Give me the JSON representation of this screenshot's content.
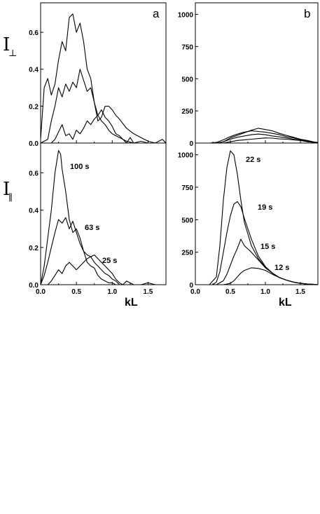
{
  "chart_data": [
    {
      "id": "a-top",
      "type": "line",
      "panel_label": "a",
      "ylabel": "I⊥",
      "xlim": [
        0,
        1.75
      ],
      "ylim": [
        0,
        0.76
      ],
      "yticks": [
        0.0,
        0.2,
        0.4,
        0.6
      ],
      "ytick_labels": [
        "0.0",
        "0.2",
        "0.4",
        "0.6"
      ],
      "show_xticklabels": false,
      "series": [
        {
          "x": [
            0,
            0.05,
            0.1,
            0.15,
            0.2,
            0.25,
            0.3,
            0.35,
            0.4,
            0.45,
            0.5,
            0.55,
            0.6,
            0.65,
            0.7,
            0.75,
            0.8,
            0.85,
            0.9,
            0.95,
            1.0,
            1.05,
            1.1,
            1.15,
            1.2,
            1.3,
            1.4,
            1.5,
            1.6,
            1.7,
            1.75
          ],
          "y": [
            0.02,
            0.3,
            0.35,
            0.26,
            0.32,
            0.45,
            0.55,
            0.5,
            0.68,
            0.7,
            0.6,
            0.65,
            0.55,
            0.4,
            0.35,
            0.22,
            0.15,
            0.12,
            0.1,
            0.07,
            0.05,
            0.04,
            0.03,
            0.02,
            0.01,
            0.0,
            0.0,
            0.0,
            0.0,
            0.0,
            0.0
          ]
        },
        {
          "x": [
            0,
            0.1,
            0.15,
            0.2,
            0.25,
            0.3,
            0.35,
            0.4,
            0.45,
            0.5,
            0.55,
            0.6,
            0.65,
            0.7,
            0.75,
            0.8,
            0.85,
            0.9,
            0.95,
            1.0,
            1.05,
            1.1,
            1.2,
            1.3,
            1.4,
            1.5,
            1.6,
            1.7,
            1.75
          ],
          "y": [
            0.0,
            0.02,
            0.12,
            0.2,
            0.3,
            0.25,
            0.32,
            0.28,
            0.33,
            0.3,
            0.4,
            0.34,
            0.28,
            0.3,
            0.22,
            0.12,
            0.14,
            0.2,
            0.2,
            0.18,
            0.15,
            0.13,
            0.08,
            0.05,
            0.03,
            0.01,
            0.0,
            0.0,
            0.0
          ]
        },
        {
          "x": [
            0,
            0.15,
            0.2,
            0.25,
            0.3,
            0.35,
            0.4,
            0.45,
            0.5,
            0.55,
            0.6,
            0.65,
            0.7,
            0.75,
            0.8,
            0.85,
            0.9,
            0.95,
            1.0,
            1.05,
            1.1,
            1.15,
            1.2,
            1.25,
            1.3,
            1.4,
            1.5,
            1.6,
            1.7,
            1.75
          ],
          "y": [
            0.0,
            0.0,
            0.02,
            0.06,
            0.1,
            0.04,
            0.05,
            0.02,
            0.07,
            0.05,
            0.08,
            0.12,
            0.1,
            0.13,
            0.15,
            0.18,
            0.14,
            0.12,
            0.09,
            0.05,
            0.04,
            0.02,
            0.0,
            0.03,
            0.0,
            0.01,
            0.0,
            0.0,
            0.02,
            0.0
          ]
        }
      ]
    },
    {
      "id": "b-top",
      "type": "line",
      "panel_label": "b",
      "xlim": [
        0,
        1.75
      ],
      "ylim": [
        0,
        1090
      ],
      "yticks": [
        0,
        250,
        500,
        750,
        1000
      ],
      "ytick_labels": [
        "0",
        "250",
        "500",
        "750",
        "1000"
      ],
      "show_xticklabels": false,
      "series": [
        {
          "x": [
            0.2,
            0.3,
            0.4,
            0.5,
            0.6,
            0.7,
            0.8,
            0.9,
            1.0,
            1.1,
            1.2,
            1.3,
            1.4,
            1.5,
            1.6,
            1.7,
            1.75
          ],
          "y": [
            0,
            0,
            10,
            40,
            60,
            80,
            100,
            115,
            105,
            95,
            75,
            60,
            45,
            30,
            20,
            8,
            5
          ]
        },
        {
          "x": [
            0.2,
            0.3,
            0.4,
            0.5,
            0.6,
            0.7,
            0.8,
            0.9,
            1.0,
            1.1,
            1.2,
            1.3,
            1.4,
            1.5,
            1.6,
            1.7,
            1.75
          ],
          "y": [
            0,
            5,
            25,
            50,
            70,
            85,
            95,
            90,
            85,
            75,
            65,
            50,
            40,
            25,
            15,
            5,
            0
          ]
        },
        {
          "x": [
            0.3,
            0.4,
            0.5,
            0.6,
            0.7,
            0.8,
            0.9,
            1.0,
            1.1,
            1.2,
            1.3,
            1.4,
            1.5,
            1.6,
            1.7,
            1.75
          ],
          "y": [
            0,
            10,
            30,
            45,
            55,
            65,
            70,
            65,
            55,
            48,
            40,
            30,
            20,
            12,
            5,
            0
          ]
        },
        {
          "x": [
            0.4,
            0.5,
            0.6,
            0.7,
            0.8,
            0.9,
            1.0,
            1.1,
            1.2,
            1.3,
            1.4,
            1.5,
            1.6,
            1.7,
            1.75
          ],
          "y": [
            0,
            10,
            20,
            25,
            30,
            35,
            40,
            38,
            32,
            30,
            25,
            20,
            10,
            5,
            0
          ]
        }
      ]
    },
    {
      "id": "a-bottom",
      "type": "line",
      "ylabel": "I∥",
      "xlabel": "kL",
      "xlim": [
        0,
        1.75
      ],
      "ylim": [
        0,
        0.76
      ],
      "xticks": [
        0.0,
        0.5,
        1.0,
        1.5
      ],
      "xtick_labels": [
        "0.0",
        "0.5",
        "1.0",
        "1.5"
      ],
      "yticks": [
        0.0,
        0.2,
        0.4,
        0.6
      ],
      "ytick_labels": [
        "0.0",
        "0.2",
        "0.4",
        "0.6"
      ],
      "show_xticklabels": true,
      "series": [
        {
          "name": "100 s",
          "x": [
            0,
            0.05,
            0.1,
            0.15,
            0.2,
            0.25,
            0.28,
            0.3,
            0.35,
            0.4,
            0.45,
            0.5,
            0.55,
            0.6,
            0.65,
            0.7,
            0.75,
            0.8,
            0.85,
            0.9,
            0.95,
            1.0,
            1.05,
            1.1,
            1.2,
            1.3,
            1.4,
            1.5,
            1.6,
            1.75
          ],
          "y": [
            0.0,
            0.1,
            0.25,
            0.4,
            0.6,
            0.72,
            0.7,
            0.62,
            0.5,
            0.35,
            0.28,
            0.3,
            0.25,
            0.18,
            0.12,
            0.1,
            0.09,
            0.05,
            0.03,
            0.02,
            0.01,
            0.01,
            0.0,
            0.0,
            0.0,
            0.0,
            0.0,
            0.0,
            0.0,
            0.0
          ]
        },
        {
          "name": "63 s",
          "x": [
            0,
            0.05,
            0.1,
            0.15,
            0.2,
            0.25,
            0.3,
            0.35,
            0.4,
            0.45,
            0.5,
            0.55,
            0.6,
            0.65,
            0.7,
            0.75,
            0.8,
            0.85,
            0.9,
            0.95,
            1.0,
            1.05,
            1.1,
            1.2,
            1.3,
            1.4,
            1.5,
            1.6,
            1.75
          ],
          "y": [
            0.0,
            0.05,
            0.12,
            0.2,
            0.28,
            0.35,
            0.33,
            0.36,
            0.3,
            0.34,
            0.28,
            0.22,
            0.18,
            0.16,
            0.15,
            0.12,
            0.1,
            0.08,
            0.06,
            0.05,
            0.03,
            0.02,
            0.0,
            0.0,
            0.0,
            0.0,
            0.0,
            0.0,
            0.0
          ]
        },
        {
          "name": "25 s",
          "x": [
            0,
            0.1,
            0.15,
            0.2,
            0.25,
            0.3,
            0.35,
            0.4,
            0.45,
            0.5,
            0.55,
            0.6,
            0.65,
            0.7,
            0.75,
            0.8,
            0.85,
            0.9,
            0.95,
            1.0,
            1.05,
            1.1,
            1.15,
            1.2,
            1.3,
            1.4,
            1.5,
            1.6,
            1.7,
            1.75
          ],
          "y": [
            0.0,
            0.0,
            0.02,
            0.05,
            0.08,
            0.06,
            0.1,
            0.12,
            0.1,
            0.08,
            0.1,
            0.12,
            0.14,
            0.15,
            0.16,
            0.14,
            0.12,
            0.1,
            0.08,
            0.06,
            0.03,
            0.01,
            0.0,
            0.02,
            0.0,
            0.0,
            0.01,
            0.0,
            0.0,
            0.0
          ]
        }
      ]
    },
    {
      "id": "b-bottom",
      "type": "line",
      "xlabel": "kL",
      "xlim": [
        0,
        1.75
      ],
      "ylim": [
        0,
        1090
      ],
      "xticks": [
        0.0,
        0.5,
        1.0,
        1.5
      ],
      "xtick_labels": [
        "0.0",
        "0.5",
        "1.0",
        "1.5"
      ],
      "yticks": [
        0,
        250,
        500,
        750,
        1000
      ],
      "ytick_labels": [
        "0",
        "250",
        "500",
        "750",
        "1000"
      ],
      "show_xticklabels": true,
      "series": [
        {
          "name": "22 s",
          "x": [
            0.2,
            0.3,
            0.35,
            0.4,
            0.45,
            0.5,
            0.55,
            0.6,
            0.65,
            0.7,
            0.8,
            0.9,
            1.0,
            1.1,
            1.2,
            1.3,
            1.4,
            1.5,
            1.6,
            1.7,
            1.75
          ],
          "y": [
            0,
            60,
            300,
            650,
            900,
            1030,
            1000,
            850,
            650,
            480,
            300,
            200,
            135,
            90,
            55,
            35,
            20,
            10,
            5,
            2,
            0
          ]
        },
        {
          "name": "19 s",
          "x": [
            0.25,
            0.3,
            0.35,
            0.4,
            0.45,
            0.5,
            0.55,
            0.6,
            0.65,
            0.7,
            0.8,
            0.9,
            1.0,
            1.1,
            1.2,
            1.3,
            1.4,
            1.5,
            1.6,
            1.7,
            1.75
          ],
          "y": [
            0,
            20,
            100,
            250,
            400,
            530,
            620,
            640,
            600,
            510,
            350,
            220,
            140,
            90,
            55,
            35,
            20,
            10,
            5,
            2,
            0
          ]
        },
        {
          "name": "15 s",
          "x": [
            0.3,
            0.4,
            0.45,
            0.5,
            0.55,
            0.6,
            0.65,
            0.7,
            0.8,
            0.9,
            1.0,
            1.1,
            1.2,
            1.3,
            1.4,
            1.5,
            1.6,
            1.7,
            1.75
          ],
          "y": [
            0,
            30,
            80,
            150,
            220,
            280,
            350,
            300,
            250,
            190,
            130,
            88,
            55,
            35,
            20,
            10,
            5,
            2,
            0
          ]
        },
        {
          "name": "12 s",
          "x": [
            0.4,
            0.5,
            0.55,
            0.6,
            0.65,
            0.7,
            0.8,
            0.9,
            1.0,
            1.1,
            1.2,
            1.3,
            1.4,
            1.5,
            1.6,
            1.7,
            1.75
          ],
          "y": [
            0,
            10,
            30,
            60,
            90,
            110,
            130,
            125,
            110,
            80,
            55,
            35,
            20,
            10,
            5,
            2,
            0
          ]
        }
      ],
      "annotations": [
        "22 s",
        "19 s",
        "15 s",
        "12 s"
      ]
    }
  ],
  "labels": {
    "a_top_letter": "a",
    "b_top_letter": "b",
    "a_bottom_ylabel_main": "I",
    "a_bottom_ylabel_sub": "∥",
    "a_top_ylabel_main": "I",
    "a_top_ylabel_sub": "⊥",
    "a_bottom_xlabel": "kL",
    "b_bottom_xlabel": "kL",
    "a_bottom_series_1": "100 s",
    "a_bottom_series_2": "63 s",
    "a_bottom_series_3": "25 s",
    "b_bottom_series_1": "22 s",
    "b_bottom_series_2": "19 s",
    "b_bottom_series_3": "15 s",
    "b_bottom_series_4": "12 s"
  }
}
